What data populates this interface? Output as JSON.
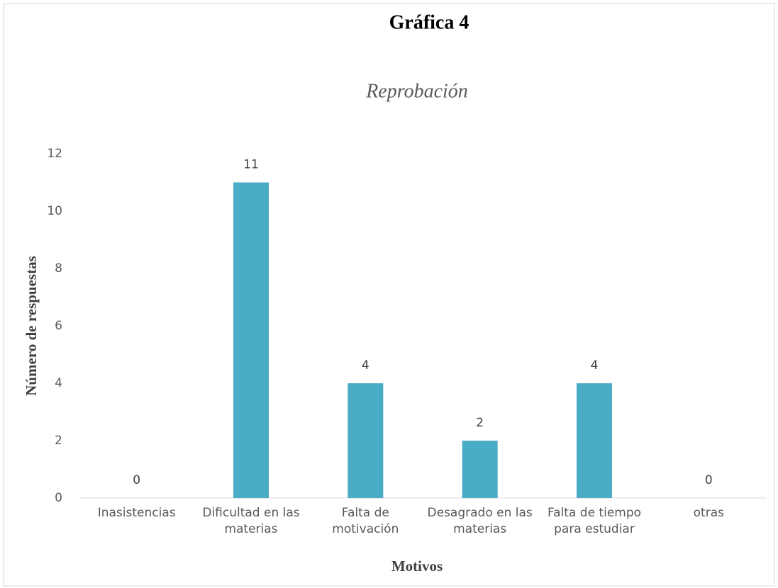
{
  "chart_data": {
    "type": "bar",
    "title": "Gráfica 4",
    "subtitle": "Reprobación",
    "x_label": "Motivos",
    "y_label": "Número de respuestas",
    "categories": [
      "Inasistencias",
      "Dificultad en las materias",
      "Falta de motivación",
      "Desagrado en las materias",
      "Falta de tiempo para estudiar",
      "otras"
    ],
    "values": [
      0,
      11,
      4,
      2,
      4,
      0
    ],
    "color": "#4bacc6",
    "ylim": [
      0,
      12
    ],
    "yticks": [
      0,
      2,
      4,
      6,
      8,
      10,
      12
    ],
    "grid": false
  }
}
